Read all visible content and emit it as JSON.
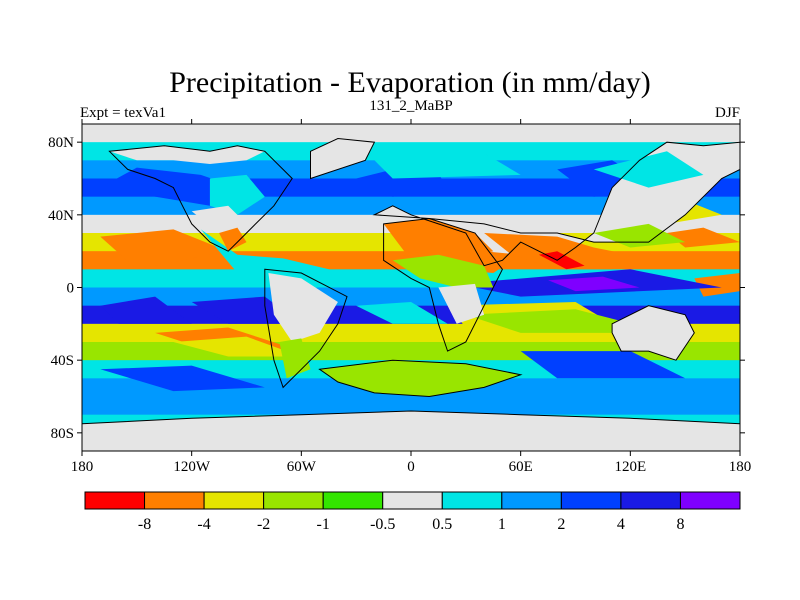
{
  "chart_data": {
    "type": "heatmap",
    "title": "Precipitation - Evaporation (in mm/day)",
    "left_subtitle": "Expt = texVa1",
    "center_subtitle": "131_2_MaBP",
    "right_subtitle": "DJF",
    "x_range": [
      -180,
      180
    ],
    "y_range": [
      -90,
      90
    ],
    "x_ticks": [
      {
        "value": -180,
        "label": "180"
      },
      {
        "value": -120,
        "label": "120W"
      },
      {
        "value": -60,
        "label": "60W"
      },
      {
        "value": 0,
        "label": "0"
      },
      {
        "value": 60,
        "label": "60E"
      },
      {
        "value": 120,
        "label": "120E"
      },
      {
        "value": 180,
        "label": "180"
      }
    ],
    "y_ticks": [
      {
        "value": 80,
        "label": "80N"
      },
      {
        "value": 40,
        "label": "40N"
      },
      {
        "value": 0,
        "label": "0"
      },
      {
        "value": -40,
        "label": "40S"
      },
      {
        "value": -80,
        "label": "80S"
      }
    ],
    "colorbar": {
      "colors": [
        "#ff0000",
        "#ff7f00",
        "#e5e500",
        "#99e500",
        "#33e500",
        "#e5e5e5",
        "#00e5e5",
        "#0099ff",
        "#0040ff",
        "#1a1ae5",
        "#7f00ff"
      ],
      "labels": [
        "-8",
        "-4",
        "-2",
        "-1",
        "-0.5",
        "0.5",
        "1",
        "2",
        "4",
        "8"
      ]
    },
    "bands": [
      {
        "lat": 85,
        "color": "#e5e5e5"
      },
      {
        "lat": 75,
        "color": "#00e5e5"
      },
      {
        "lat": 65,
        "color": "#0099ff"
      },
      {
        "lat": 55,
        "color": "#0040ff"
      },
      {
        "lat": 45,
        "color": "#0099ff"
      },
      {
        "lat": 35,
        "color": "#e5e5e5"
      },
      {
        "lat": 25,
        "color": "#e5e500"
      },
      {
        "lat": 15,
        "color": "#ff7f00"
      },
      {
        "lat": 5,
        "color": "#00e5e5"
      },
      {
        "lat": -5,
        "color": "#0099ff"
      },
      {
        "lat": -15,
        "color": "#1a1ae5"
      },
      {
        "lat": -25,
        "color": "#e5e500"
      },
      {
        "lat": -35,
        "color": "#99e500"
      },
      {
        "lat": -45,
        "color": "#00e5e5"
      },
      {
        "lat": -55,
        "color": "#0099ff"
      },
      {
        "lat": -65,
        "color": "#0099ff"
      },
      {
        "lat": -75,
        "color": "#00e5e5"
      },
      {
        "lat": -85,
        "color": "#e5e5e5"
      }
    ],
    "patches": [
      {
        "lon": [
          -170,
          -150,
          -115,
          -80,
          -110
        ],
        "lat": [
          55,
          66,
          62,
          50,
          45
        ],
        "color": "#0040ff"
      },
      {
        "lon": [
          -170,
          -130,
          -100,
          -150
        ],
        "lat": [
          28,
          32,
          20,
          10
        ],
        "color": "#ff7f00"
      },
      {
        "lon": [
          -30,
          10,
          20,
          -10
        ],
        "lat": [
          60,
          70,
          55,
          50
        ],
        "color": "#0040ff"
      },
      {
        "lon": [
          -120,
          -80,
          -60,
          -100
        ],
        "lat": [
          -8,
          -5,
          -20,
          -20
        ],
        "color": "#1a1ae5"
      },
      {
        "lon": [
          -170,
          -140,
          -120,
          -160
        ],
        "lat": [
          -10,
          -5,
          -20,
          -20
        ],
        "color": "#1a1ae5"
      },
      {
        "lon": [
          -115,
          -95,
          -70,
          -45,
          -55,
          -95
        ],
        "lat": [
          32,
          18,
          16,
          10,
          -5,
          8
        ],
        "color": "#00e5e5"
      },
      {
        "lon": [
          -140,
          -100,
          -60,
          -100
        ],
        "lat": [
          -25,
          -22,
          -35,
          -38
        ],
        "color": "#ff7f00"
      },
      {
        "lon": [
          -130,
          -90,
          -60,
          -100
        ],
        "lat": [
          -30,
          -27,
          -38,
          -38
        ],
        "color": "#e5e500"
      },
      {
        "lon": [
          -170,
          -120,
          -80,
          -130
        ],
        "lat": [
          -45,
          -43,
          -55,
          -57
        ],
        "color": "#0040ff"
      },
      {
        "lon": [
          20,
          90,
          110,
          30
        ],
        "lat": [
          -10,
          -8,
          -20,
          -22
        ],
        "color": "#e5e500"
      },
      {
        "lon": [
          30,
          90,
          140,
          60
        ],
        "lat": [
          -15,
          -12,
          -25,
          -25
        ],
        "color": "#99e500"
      },
      {
        "lon": [
          60,
          120,
          150,
          80
        ],
        "lat": [
          -35,
          -35,
          -50,
          -50
        ],
        "color": "#0040ff"
      },
      {
        "lon": [
          130,
          150,
          170,
          140
        ],
        "lat": [
          45,
          48,
          40,
          35
        ],
        "color": "#e5e500"
      },
      {
        "lon": [
          140,
          160,
          180,
          150
        ],
        "lat": [
          30,
          33,
          25,
          22
        ],
        "color": "#ff7f00"
      },
      {
        "lon": [
          155,
          180,
          180,
          160
        ],
        "lat": [
          5,
          8,
          -2,
          -5
        ],
        "color": "#ff7f00"
      },
      {
        "lon": [
          25,
          120,
          170,
          60
        ],
        "lat": [
          2,
          10,
          0,
          -5
        ],
        "color": "#1a1ae5"
      },
      {
        "lon": [
          75,
          105,
          125,
          90
        ],
        "lat": [
          4,
          6,
          0,
          -2
        ],
        "color": "#7f00ff"
      },
      {
        "lon": [
          -30,
          0,
          20,
          -10
        ],
        "lat": [
          -10,
          -8,
          -20,
          -20
        ],
        "color": "#00e5e5"
      },
      {
        "lon": [
          80,
          110,
          135,
          100
        ],
        "lat": [
          65,
          70,
          55,
          50
        ],
        "color": "#0040ff"
      },
      {
        "lon": [
          -20,
          40,
          60,
          -10
        ],
        "lat": [
          70,
          74,
          62,
          60
        ],
        "color": "#00e5e5"
      }
    ],
    "land": [
      {
        "lon": [
          -165,
          -135,
          -110,
          -95,
          -80,
          -65,
          -75,
          -85,
          -95,
          -100,
          -110,
          -120,
          -125,
          -130,
          -140,
          -155,
          -165
        ],
        "lat": [
          75,
          78,
          75,
          78,
          75,
          60,
          45,
          35,
          25,
          20,
          25,
          35,
          45,
          55,
          60,
          65,
          75
        ],
        "fills": [
          {
            "lon": [
              -165,
              -135,
              -110,
              -95,
              -80,
              -90,
              -110,
              -130,
              -150
            ],
            "lat": [
              75,
              78,
              75,
              78,
              75,
              70,
              68,
              70,
              70
            ],
            "color": "#e5e5e5"
          },
          {
            "lon": [
              -110,
              -90,
              -80,
              -95,
              -110
            ],
            "lat": [
              60,
              62,
              50,
              40,
              45
            ],
            "color": "#00e5e5"
          },
          {
            "lon": [
              -120,
              -100,
              -90,
              -105
            ],
            "lat": [
              42,
              45,
              35,
              30
            ],
            "color": "#e5e5e5"
          },
          {
            "lon": [
              -105,
              -95,
              -90,
              -100
            ],
            "lat": [
              30,
              33,
              25,
              20
            ],
            "color": "#ff7f00"
          }
        ]
      },
      {
        "lon": [
          -80,
          -60,
          -35,
          -40,
          -50,
          -60,
          -70,
          -75,
          -80
        ],
        "lat": [
          10,
          8,
          -5,
          -20,
          -35,
          -45,
          -55,
          -40,
          -10
        ],
        "fills": [
          {
            "lon": [
              -78,
              -60,
              -40,
              -50,
              -65,
              -75
            ],
            "lat": [
              8,
              5,
              -8,
              -25,
              -30,
              -15
            ],
            "color": "#e5e5e5"
          },
          {
            "lon": [
              -72,
              -60,
              -55,
              -68
            ],
            "lat": [
              -30,
              -28,
              -45,
              -50
            ],
            "color": "#99e500"
          }
        ]
      },
      {
        "lon": [
          -55,
          -25,
          -20,
          -40,
          -55
        ],
        "lat": [
          60,
          70,
          80,
          82,
          75
        ],
        "fills": [
          {
            "lon": [
              -55,
              -25,
              -20,
              -40,
              -55
            ],
            "lat": [
              60,
              70,
              80,
              82,
              75
            ],
            "color": "#e5e5e5"
          }
        ]
      },
      {
        "lon": [
          -20,
          10,
          40,
          60,
          80,
          100,
          130,
          150,
          170,
          180,
          180,
          160,
          140,
          125,
          110,
          100,
          90,
          80,
          60,
          50,
          40,
          30,
          15,
          0,
          -10,
          -20
        ],
        "lat": [
          40,
          38,
          35,
          30,
          30,
          25,
          25,
          40,
          60,
          65,
          80,
          78,
          80,
          70,
          55,
          30,
          22,
          15,
          25,
          15,
          12,
          30,
          35,
          40,
          45,
          40
        ],
        "fills": [
          {
            "lon": [
              -20,
              10,
              40,
              60,
              80,
              100,
              130,
              150,
              170,
              180,
              180,
              160,
              140,
              125,
              110,
              100,
              90,
              80,
              60,
              50,
              40,
              30,
              15,
              0,
              -10,
              -20
            ],
            "lat": [
              40,
              38,
              35,
              30,
              30,
              25,
              25,
              40,
              60,
              65,
              80,
              78,
              80,
              70,
              55,
              30,
              22,
              15,
              25,
              15,
              12,
              30,
              35,
              40,
              45,
              40
            ],
            "color": "#e5e5e5"
          },
          {
            "lon": [
              -15,
              10,
              40,
              60,
              45,
              20,
              0
            ],
            "lat": [
              35,
              30,
              20,
              18,
              8,
              10,
              15
            ],
            "color": "#ff7f00"
          },
          {
            "lon": [
              40,
              80,
              100,
              120,
              110,
              80,
              55
            ],
            "lat": [
              30,
              28,
              22,
              18,
              10,
              10,
              18
            ],
            "color": "#ff7f00"
          },
          {
            "lon": [
              70,
              80,
              95,
              85
            ],
            "lat": [
              18,
              20,
              12,
              10
            ],
            "color": "#ff0000"
          },
          {
            "lon": [
              100,
              130,
              150,
              120
            ],
            "lat": [
              30,
              35,
              25,
              22
            ],
            "color": "#99e500"
          },
          {
            "lon": [
              100,
              140,
              160,
              130
            ],
            "lat": [
              65,
              75,
              62,
              55
            ],
            "color": "#00e5e5"
          }
        ]
      },
      {
        "lon": [
          -15,
          10,
          35,
          50,
          40,
          30,
          20,
          15,
          10,
          0,
          -15
        ],
        "lat": [
          35,
          38,
          30,
          10,
          -10,
          -30,
          -35,
          -20,
          0,
          5,
          15
        ],
        "fills": [
          {
            "lon": [
              -15,
              10,
              35,
              45,
              25,
              0
            ],
            "lat": [
              35,
              38,
              30,
              20,
              15,
              20
            ],
            "color": "#ff7f00"
          },
          {
            "lon": [
              -10,
              15,
              40,
              45,
              25,
              5
            ],
            "lat": [
              15,
              18,
              12,
              0,
              0,
              5
            ],
            "color": "#99e500"
          },
          {
            "lon": [
              15,
              35,
              40,
              25
            ],
            "lat": [
              0,
              2,
              -15,
              -20
            ],
            "color": "#e5e5e5"
          }
        ]
      },
      {
        "lon": [
          110,
          130,
          150,
          155,
          145,
          130,
          115,
          110
        ],
        "lat": [
          -20,
          -10,
          -15,
          -25,
          -40,
          -35,
          -35,
          -25
        ],
        "fills": [
          {
            "lon": [
              110,
              130,
              150,
              155,
              145,
              130,
              115,
              110
            ],
            "lat": [
              -20,
              -10,
              -15,
              -25,
              -40,
              -35,
              -35,
              -25
            ],
            "color": "#e5e5e5"
          }
        ]
      },
      {
        "lon": [
          -180,
          -120,
          -60,
          0,
          60,
          120,
          180,
          180,
          -180
        ],
        "lat": [
          -75,
          -72,
          -70,
          -68,
          -70,
          -72,
          -75,
          -90,
          -90
        ],
        "fills": [
          {
            "lon": [
              -180,
              -120,
              -60,
              0,
              60,
              120,
              180,
              180,
              -180
            ],
            "lat": [
              -75,
              -72,
              -70,
              -68,
              -70,
              -72,
              -75,
              -90,
              -90
            ],
            "color": "#e5e5e5"
          }
        ]
      },
      {
        "lon": [
          -50,
          -10,
          30,
          60,
          40,
          10,
          -20,
          -40
        ],
        "lat": [
          -45,
          -40,
          -42,
          -48,
          -55,
          -60,
          -58,
          -52
        ],
        "fills": [
          {
            "lon": [
              -50,
              -10,
              30,
              60,
              40,
              10,
              -20,
              -40
            ],
            "lat": [
              -45,
              -40,
              -42,
              -48,
              -55,
              -60,
              -58,
              -52
            ],
            "color": "#99e500"
          }
        ]
      }
    ]
  }
}
